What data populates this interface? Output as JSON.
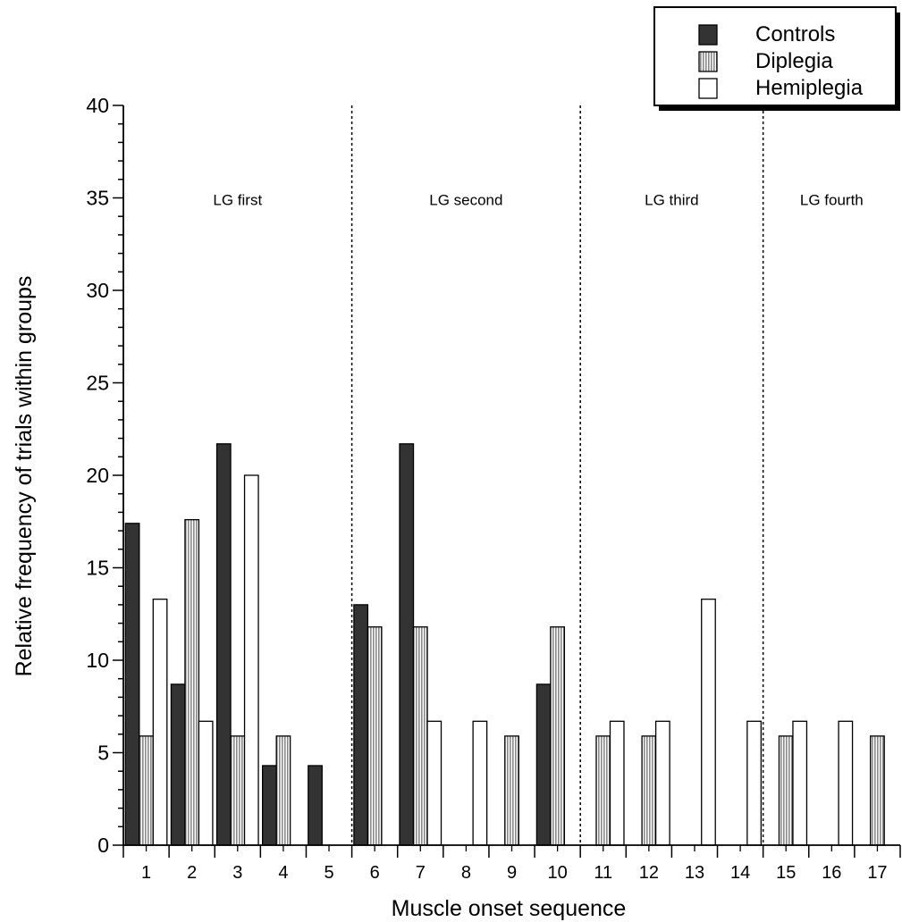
{
  "colors": {
    "controls_fill": "#333333",
    "diplegia_fill": "#c8c8c8",
    "hemiplegia_fill": "#ffffff",
    "stroke": "#000000"
  },
  "chart_data": {
    "type": "bar",
    "xlabel": "Muscle onset sequence",
    "ylabel": "Relative frequency of trials within groups",
    "ylim": [
      0,
      40
    ],
    "yticks": [
      "0",
      "5",
      "10",
      "15",
      "20",
      "25",
      "30",
      "35",
      "40"
    ],
    "categories": [
      "1",
      "2",
      "3",
      "4",
      "5",
      "6",
      "7",
      "8",
      "9",
      "10",
      "11",
      "12",
      "13",
      "14",
      "15",
      "16",
      "17"
    ],
    "series": [
      {
        "name": "Controls",
        "pattern": "solid-dark",
        "values": [
          17.4,
          8.7,
          21.7,
          4.3,
          4.3,
          13.0,
          21.7,
          0,
          0,
          8.7,
          0,
          0,
          0,
          0,
          0,
          0,
          0
        ]
      },
      {
        "name": "Diplegia",
        "pattern": "vertical-stripes",
        "values": [
          5.9,
          17.6,
          5.9,
          5.9,
          0,
          11.8,
          11.8,
          0,
          5.9,
          11.8,
          5.9,
          5.9,
          0,
          0,
          5.9,
          0,
          5.9
        ]
      },
      {
        "name": "Hemiplegia",
        "pattern": "white",
        "values": [
          13.3,
          6.7,
          20.0,
          0,
          0,
          0,
          6.7,
          6.7,
          0,
          0,
          6.7,
          6.7,
          13.3,
          6.7,
          6.7,
          6.7,
          0
        ]
      }
    ],
    "grid": false,
    "legend_position": "top-right",
    "group_separators_after_category": [
      5,
      10,
      14
    ],
    "annotations": [
      "LG first",
      "LG second",
      "LG third",
      "LG fourth"
    ]
  }
}
